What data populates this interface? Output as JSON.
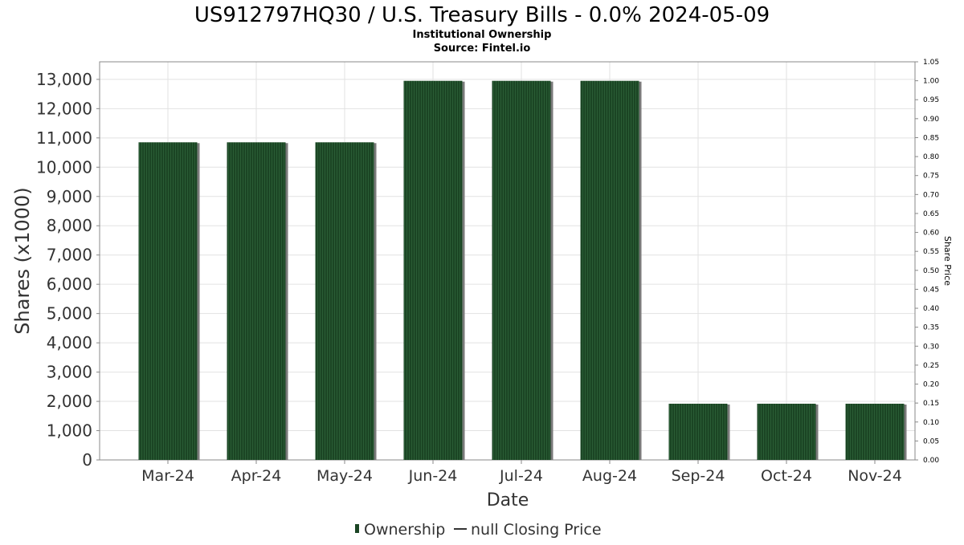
{
  "chart_data": {
    "type": "bar",
    "title": "US912797HQ30 / U.S. Treasury Bills - 0.0% 2024-05-09",
    "subtitle": "Institutional Ownership",
    "source": "Source: Fintel.io",
    "xlabel": "Date",
    "ylabel": "Shares (x1000)",
    "y2label": "Share Price",
    "categories": [
      "Mar-24",
      "Apr-24",
      "May-24",
      "Jun-24",
      "Jul-24",
      "Aug-24",
      "Sep-24",
      "Oct-24",
      "Nov-24"
    ],
    "series": [
      {
        "name": "Ownership",
        "color": "#1b4524",
        "values": [
          10850,
          10850,
          10850,
          12950,
          12950,
          12950,
          1920,
          1920,
          1920
        ]
      }
    ],
    "legend": {
      "position": "bottom-center",
      "ownership_label": "Ownership",
      "price_label": "null Closing Price"
    },
    "ylim": [
      0,
      13600
    ],
    "yticks": [
      0,
      1000,
      2000,
      3000,
      4000,
      5000,
      6000,
      7000,
      8000,
      9000,
      10000,
      11000,
      12000,
      13000
    ],
    "ytick_labels": [
      "0",
      "1,000",
      "2,000",
      "3,000",
      "4,000",
      "5,000",
      "6,000",
      "7,000",
      "8,000",
      "9,000",
      "10,000",
      "11,000",
      "12,000",
      "13,000"
    ],
    "y2lim": [
      0,
      1.05
    ],
    "y2ticks": [
      0,
      0.05,
      0.1,
      0.15,
      0.2,
      0.25,
      0.3,
      0.35,
      0.4,
      0.45,
      0.5,
      0.55,
      0.6,
      0.65,
      0.7,
      0.75,
      0.8,
      0.85,
      0.9,
      0.95,
      1.0,
      1.05
    ],
    "y2tick_labels": [
      "0.00",
      "0.05",
      "0.10",
      "0.15",
      "0.20",
      "0.25",
      "0.30",
      "0.35",
      "0.40",
      "0.45",
      "0.50",
      "0.55",
      "0.60",
      "0.65",
      "0.70",
      "0.75",
      "0.80",
      "0.85",
      "0.90",
      "0.95",
      "1.00",
      "1.05"
    ],
    "grid": true
  }
}
